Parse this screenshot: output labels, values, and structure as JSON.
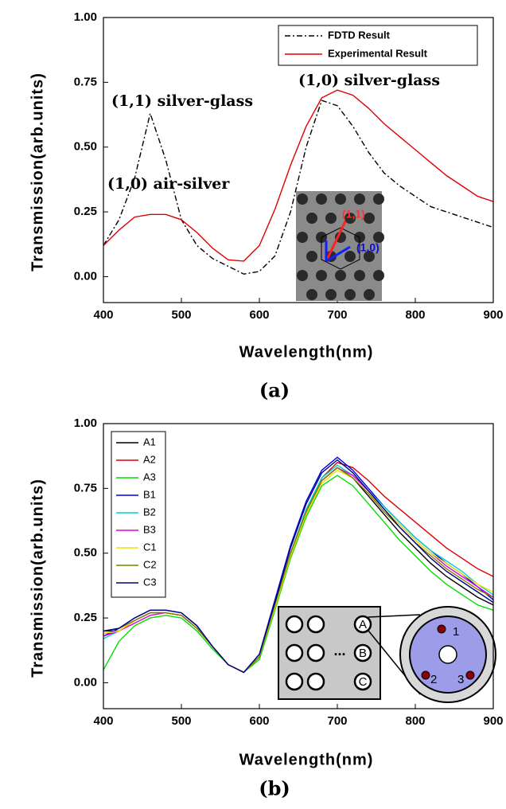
{
  "chart_data": [
    {
      "type": "line",
      "caption": "(a)",
      "xlabel": "Wavelength(nm)",
      "ylabel": "Transmission(arb.units)",
      "x": [
        400,
        420,
        440,
        460,
        480,
        500,
        520,
        540,
        560,
        580,
        600,
        620,
        640,
        660,
        680,
        700,
        720,
        740,
        760,
        780,
        800,
        820,
        840,
        860,
        880,
        900
      ],
      "xlim": [
        400,
        900
      ],
      "ylim": [
        -0.1,
        1.0
      ],
      "xticks": [
        400,
        500,
        600,
        700,
        800,
        900
      ],
      "yticks": [
        {
          "value": 0,
          "label": "0.00"
        },
        {
          "value": 0.25,
          "label": "0.25"
        },
        {
          "value": 0.5,
          "label": "0.50"
        },
        {
          "value": 0.75,
          "label": "0.75"
        },
        {
          "value": 1,
          "label": "1.00"
        }
      ],
      "legend": "upper right",
      "series": [
        {
          "name": "FDTD Result",
          "color": "#000000",
          "linestyle": "dashdot",
          "values": [
            0.12,
            0.22,
            0.38,
            0.63,
            0.45,
            0.22,
            0.12,
            0.07,
            0.04,
            0.01,
            0.02,
            0.08,
            0.25,
            0.5,
            0.68,
            0.66,
            0.58,
            0.48,
            0.4,
            0.35,
            0.31,
            0.27,
            0.25,
            0.23,
            0.21,
            0.19
          ]
        },
        {
          "name": "Experimental Result",
          "color": "#e00000",
          "linestyle": "solid",
          "values": [
            0.12,
            0.18,
            0.23,
            0.24,
            0.24,
            0.22,
            0.17,
            0.11,
            0.065,
            0.06,
            0.12,
            0.26,
            0.43,
            0.58,
            0.69,
            0.72,
            0.7,
            0.65,
            0.59,
            0.54,
            0.49,
            0.44,
            0.39,
            0.35,
            0.31,
            0.29
          ]
        }
      ],
      "annotations": [
        "(1,1) silver-glass",
        "(1,0) silver-glass",
        "(1,0) air-silver"
      ],
      "inset_labels": [
        "(1,1)",
        "(1,0)"
      ]
    },
    {
      "type": "line",
      "caption": "(b)",
      "xlabel": "Wavelength(nm)",
      "ylabel": "Transmission(arb.units)",
      "x": [
        400,
        420,
        440,
        460,
        480,
        500,
        520,
        540,
        560,
        580,
        600,
        620,
        640,
        660,
        680,
        700,
        720,
        740,
        760,
        780,
        800,
        820,
        840,
        860,
        880,
        900
      ],
      "xlim": [
        400,
        900
      ],
      "ylim": [
        -0.1,
        1.0
      ],
      "xticks": [
        400,
        500,
        600,
        700,
        800,
        900
      ],
      "yticks": [
        {
          "value": 0,
          "label": "0.00"
        },
        {
          "value": 0.25,
          "label": "0.25"
        },
        {
          "value": 0.5,
          "label": "0.50"
        },
        {
          "value": 0.75,
          "label": "0.75"
        },
        {
          "value": 1,
          "label": "1.00"
        }
      ],
      "legend": "upper left",
      "series": [
        {
          "name": "A1",
          "color": "#000000",
          "linestyle": "solid",
          "values": [
            0.2,
            0.2,
            0.24,
            0.27,
            0.27,
            0.26,
            0.21,
            0.14,
            0.07,
            0.04,
            0.1,
            0.3,
            0.5,
            0.66,
            0.78,
            0.83,
            0.79,
            0.72,
            0.65,
            0.58,
            0.52,
            0.46,
            0.41,
            0.37,
            0.33,
            0.3
          ]
        },
        {
          "name": "A2",
          "color": "#e00000",
          "linestyle": "solid",
          "values": [
            0.19,
            0.2,
            0.24,
            0.27,
            0.27,
            0.26,
            0.21,
            0.14,
            0.07,
            0.04,
            0.1,
            0.3,
            0.5,
            0.66,
            0.79,
            0.85,
            0.83,
            0.78,
            0.72,
            0.67,
            0.62,
            0.57,
            0.52,
            0.48,
            0.44,
            0.41
          ]
        },
        {
          "name": "A3",
          "color": "#00dd00",
          "linestyle": "solid",
          "values": [
            0.05,
            0.16,
            0.22,
            0.25,
            0.26,
            0.25,
            0.2,
            0.13,
            0.07,
            0.04,
            0.09,
            0.28,
            0.48,
            0.64,
            0.76,
            0.8,
            0.76,
            0.69,
            0.62,
            0.55,
            0.49,
            0.43,
            0.38,
            0.34,
            0.3,
            0.28
          ]
        },
        {
          "name": "B1",
          "color": "#0000ee",
          "linestyle": "solid",
          "values": [
            0.18,
            0.21,
            0.25,
            0.28,
            0.28,
            0.27,
            0.22,
            0.14,
            0.07,
            0.04,
            0.11,
            0.32,
            0.53,
            0.7,
            0.82,
            0.87,
            0.82,
            0.75,
            0.68,
            0.62,
            0.56,
            0.51,
            0.46,
            0.42,
            0.37,
            0.32
          ]
        },
        {
          "name": "B2",
          "color": "#00d0d0",
          "linestyle": "solid",
          "values": [
            0.17,
            0.2,
            0.24,
            0.27,
            0.27,
            0.26,
            0.21,
            0.14,
            0.07,
            0.04,
            0.1,
            0.3,
            0.5,
            0.67,
            0.79,
            0.84,
            0.8,
            0.74,
            0.68,
            0.62,
            0.56,
            0.51,
            0.47,
            0.43,
            0.38,
            0.34
          ]
        },
        {
          "name": "B3",
          "color": "#dd00dd",
          "linestyle": "solid",
          "values": [
            0.18,
            0.2,
            0.23,
            0.26,
            0.27,
            0.26,
            0.21,
            0.14,
            0.07,
            0.04,
            0.1,
            0.3,
            0.5,
            0.66,
            0.78,
            0.83,
            0.8,
            0.74,
            0.67,
            0.61,
            0.55,
            0.5,
            0.45,
            0.41,
            0.37,
            0.33
          ]
        },
        {
          "name": "C1",
          "color": "#f0e000",
          "linestyle": "solid",
          "values": [
            0.19,
            0.2,
            0.24,
            0.27,
            0.27,
            0.26,
            0.21,
            0.14,
            0.07,
            0.04,
            0.1,
            0.29,
            0.49,
            0.65,
            0.77,
            0.82,
            0.79,
            0.73,
            0.67,
            0.61,
            0.55,
            0.5,
            0.46,
            0.42,
            0.38,
            0.35
          ]
        },
        {
          "name": "C2",
          "color": "#808000",
          "linestyle": "solid",
          "values": [
            0.2,
            0.21,
            0.24,
            0.27,
            0.27,
            0.26,
            0.21,
            0.14,
            0.07,
            0.04,
            0.1,
            0.3,
            0.5,
            0.66,
            0.78,
            0.83,
            0.79,
            0.73,
            0.66,
            0.6,
            0.54,
            0.49,
            0.44,
            0.4,
            0.36,
            0.33
          ]
        },
        {
          "name": "C3",
          "color": "#000080",
          "linestyle": "solid",
          "values": [
            0.2,
            0.21,
            0.25,
            0.28,
            0.28,
            0.27,
            0.22,
            0.14,
            0.07,
            0.04,
            0.11,
            0.31,
            0.52,
            0.69,
            0.81,
            0.86,
            0.81,
            0.74,
            0.67,
            0.6,
            0.54,
            0.48,
            0.43,
            0.39,
            0.35,
            0.31
          ]
        }
      ],
      "inset_labels": [
        "A",
        "B",
        "C",
        "...",
        "1",
        "2",
        "3"
      ]
    }
  ]
}
